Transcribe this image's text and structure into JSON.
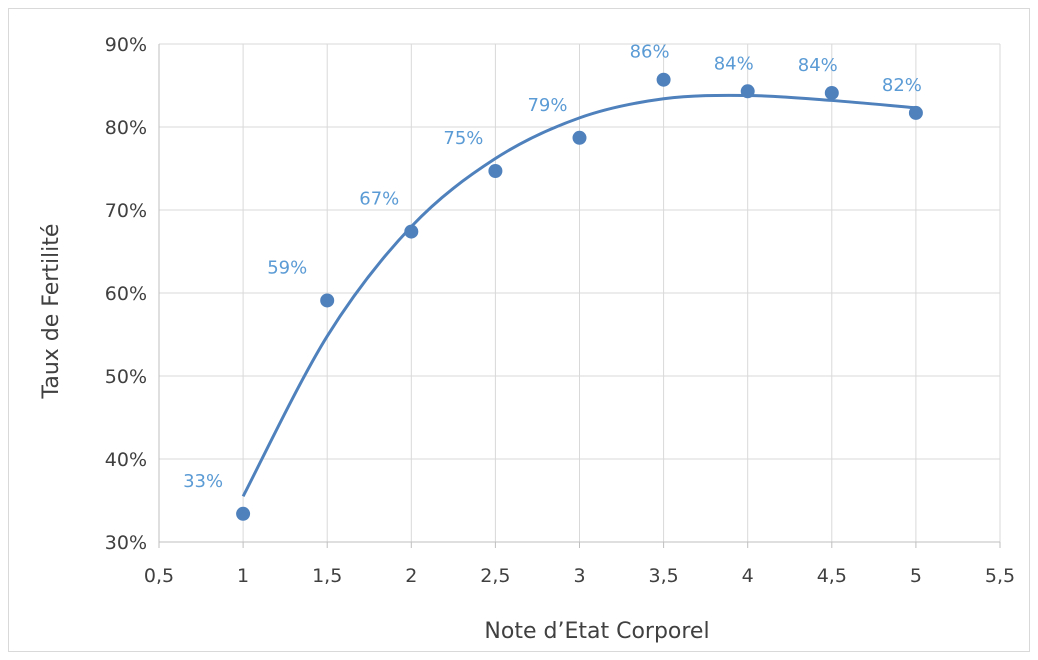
{
  "chart_data": {
    "type": "scatter",
    "xlabel": "Note d’Etat Corporel",
    "ylabel": "Taux de Fertilité",
    "xlim": [
      0.5,
      5.5
    ],
    "ylim": [
      0.3,
      0.9
    ],
    "x_ticks": [
      0.5,
      1,
      1.5,
      2,
      2.5,
      3,
      3.5,
      4,
      4.5,
      5,
      5.5
    ],
    "x_tick_labels": [
      "0,5",
      "1",
      "1,5",
      "2",
      "2,5",
      "3",
      "3,5",
      "4",
      "4,5",
      "5",
      "5,5"
    ],
    "y_ticks": [
      0.3,
      0.4,
      0.5,
      0.6,
      0.7,
      0.8,
      0.9
    ],
    "y_tick_labels": [
      "30%",
      "40%",
      "50%",
      "60%",
      "70%",
      "80%",
      "90%"
    ],
    "grid": true,
    "legend": "none",
    "series": [
      {
        "x": [
          1,
          1.5,
          2,
          2.5,
          3,
          3.5,
          4,
          4.5,
          5
        ],
        "y": [
          0.334,
          0.591,
          0.674,
          0.747,
          0.787,
          0.857,
          0.843,
          0.841,
          0.817
        ],
        "data_labels": [
          "33%",
          "59%",
          "67%",
          "75%",
          "79%",
          "86%",
          "84%",
          "84%",
          "82%"
        ],
        "color": "#4f81bd",
        "label_color": "#5b9bd5"
      }
    ],
    "trendline": {
      "type": "polynomial",
      "x": [
        1,
        1.5,
        2,
        2.5,
        3,
        3.5,
        4,
        4.5,
        5
      ],
      "y": [
        0.355,
        0.548,
        0.68,
        0.762,
        0.811,
        0.834,
        0.838,
        0.832,
        0.823
      ],
      "color": "#4f81bd"
    }
  }
}
